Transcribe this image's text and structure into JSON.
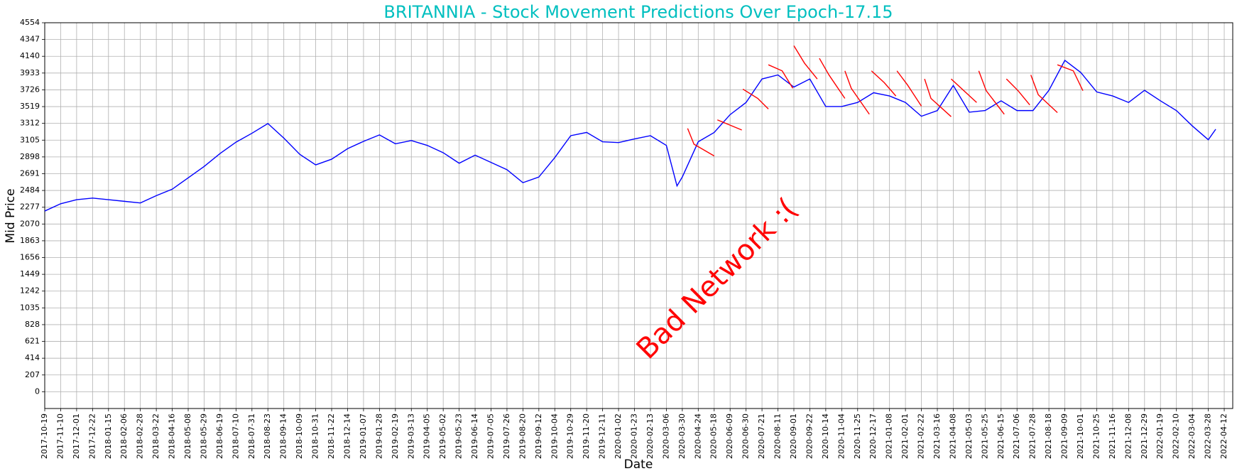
{
  "chart_data": {
    "type": "line",
    "title": "BRITANNIA - Stock Movement Predictions Over Epoch-17.15",
    "title_color": "#00bfbf",
    "x_label": "Date",
    "y_label": "Mid Price",
    "annotation": {
      "text": "Bad Network :(",
      "color": "red"
    },
    "grid": true,
    "xlim": [
      0,
      1118
    ],
    "ylim": [
      -207,
      4554
    ],
    "yticks": [
      0,
      207,
      414,
      621,
      828,
      1035,
      1242,
      1449,
      1656,
      1863,
      2070,
      2277,
      2484,
      2691,
      2898,
      3105,
      3312,
      3519,
      3726,
      3933,
      4140,
      4347,
      4554
    ],
    "xticks": [
      {
        "value": 0,
        "label": "2017-10-19"
      },
      {
        "value": 15,
        "label": "2017-11-10"
      },
      {
        "value": 30,
        "label": "2017-12-01"
      },
      {
        "value": 45,
        "label": "2017-12-22"
      },
      {
        "value": 60,
        "label": "2018-01-15"
      },
      {
        "value": 75,
        "label": "2018-02-06"
      },
      {
        "value": 90,
        "label": "2018-02-28"
      },
      {
        "value": 105,
        "label": "2018-03-22"
      },
      {
        "value": 120,
        "label": "2018-04-16"
      },
      {
        "value": 135,
        "label": "2018-05-08"
      },
      {
        "value": 150,
        "label": "2018-05-29"
      },
      {
        "value": 165,
        "label": "2018-06-19"
      },
      {
        "value": 180,
        "label": "2018-07-10"
      },
      {
        "value": 195,
        "label": "2018-07-31"
      },
      {
        "value": 210,
        "label": "2018-08-23"
      },
      {
        "value": 225,
        "label": "2018-09-14"
      },
      {
        "value": 240,
        "label": "2018-10-09"
      },
      {
        "value": 255,
        "label": "2018-10-31"
      },
      {
        "value": 270,
        "label": "2018-11-22"
      },
      {
        "value": 285,
        "label": "2018-12-14"
      },
      {
        "value": 300,
        "label": "2019-01-07"
      },
      {
        "value": 315,
        "label": "2019-01-28"
      },
      {
        "value": 330,
        "label": "2019-02-19"
      },
      {
        "value": 345,
        "label": "2019-03-13"
      },
      {
        "value": 360,
        "label": "2019-04-05"
      },
      {
        "value": 375,
        "label": "2019-05-02"
      },
      {
        "value": 390,
        "label": "2019-05-23"
      },
      {
        "value": 405,
        "label": "2019-06-14"
      },
      {
        "value": 420,
        "label": "2019-07-05"
      },
      {
        "value": 435,
        "label": "2019-07-26"
      },
      {
        "value": 450,
        "label": "2019-08-20"
      },
      {
        "value": 465,
        "label": "2019-09-12"
      },
      {
        "value": 480,
        "label": "2019-10-04"
      },
      {
        "value": 495,
        "label": "2019-10-29"
      },
      {
        "value": 510,
        "label": "2019-11-20"
      },
      {
        "value": 525,
        "label": "2019-12-11"
      },
      {
        "value": 540,
        "label": "2020-01-02"
      },
      {
        "value": 555,
        "label": "2020-01-23"
      },
      {
        "value": 570,
        "label": "2020-02-13"
      },
      {
        "value": 585,
        "label": "2020-03-06"
      },
      {
        "value": 600,
        "label": "2020-03-30"
      },
      {
        "value": 615,
        "label": "2020-04-24"
      },
      {
        "value": 630,
        "label": "2020-05-18"
      },
      {
        "value": 645,
        "label": "2020-06-09"
      },
      {
        "value": 660,
        "label": "2020-06-30"
      },
      {
        "value": 675,
        "label": "2020-07-21"
      },
      {
        "value": 690,
        "label": "2020-08-11"
      },
      {
        "value": 705,
        "label": "2020-09-01"
      },
      {
        "value": 720,
        "label": "2020-09-22"
      },
      {
        "value": 735,
        "label": "2020-10-14"
      },
      {
        "value": 750,
        "label": "2020-11-04"
      },
      {
        "value": 765,
        "label": "2020-11-25"
      },
      {
        "value": 780,
        "label": "2020-12-17"
      },
      {
        "value": 795,
        "label": "2021-01-08"
      },
      {
        "value": 810,
        "label": "2021-02-01"
      },
      {
        "value": 825,
        "label": "2021-02-22"
      },
      {
        "value": 840,
        "label": "2021-03-16"
      },
      {
        "value": 855,
        "label": "2021-04-08"
      },
      {
        "value": 870,
        "label": "2021-05-03"
      },
      {
        "value": 885,
        "label": "2021-05-25"
      },
      {
        "value": 900,
        "label": "2021-06-15"
      },
      {
        "value": 915,
        "label": "2021-07-06"
      },
      {
        "value": 930,
        "label": "2021-07-28"
      },
      {
        "value": 945,
        "label": "2021-08-18"
      },
      {
        "value": 960,
        "label": "2021-09-09"
      },
      {
        "value": 975,
        "label": "2021-10-01"
      },
      {
        "value": 990,
        "label": "2021-10-25"
      },
      {
        "value": 1005,
        "label": "2021-11-16"
      },
      {
        "value": 1020,
        "label": "2021-12-08"
      },
      {
        "value": 1035,
        "label": "2021-12-29"
      },
      {
        "value": 1050,
        "label": "2022-01-19"
      },
      {
        "value": 1065,
        "label": "2022-02-10"
      },
      {
        "value": 1080,
        "label": "2022-03-04"
      },
      {
        "value": 1095,
        "label": "2022-03-28"
      },
      {
        "value": 1110,
        "label": "2022-04-12"
      }
    ],
    "series": [
      {
        "color": "blue",
        "x": [
          0,
          15,
          30,
          45,
          60,
          75,
          90,
          105,
          120,
          135,
          150,
          165,
          180,
          195,
          210,
          225,
          240,
          255,
          270,
          285,
          300,
          315,
          330,
          345,
          360,
          375,
          390,
          405,
          420,
          435,
          450,
          465,
          480,
          495,
          510,
          525,
          540,
          555,
          570,
          585,
          595,
          600,
          615,
          630,
          645,
          660,
          675,
          690,
          705,
          720,
          735,
          750,
          765,
          780,
          795,
          810,
          825,
          840,
          855,
          870,
          885,
          900,
          915,
          930,
          945,
          960,
          975,
          990,
          1005,
          1020,
          1035,
          1050,
          1065,
          1080,
          1095,
          1102
        ],
        "values": [
          2230,
          2320,
          2370,
          2390,
          2370,
          2350,
          2330,
          2420,
          2500,
          2640,
          2780,
          2940,
          3080,
          3190,
          3310,
          3130,
          2930,
          2800,
          2870,
          3000,
          3090,
          3170,
          3060,
          3100,
          3040,
          2950,
          2820,
          2920,
          2830,
          2740,
          2580,
          2650,
          2890,
          3160,
          3200,
          3085,
          3075,
          3120,
          3160,
          3040,
          2540,
          2650,
          3085,
          3200,
          3420,
          3570,
          3860,
          3910,
          3760,
          3860,
          3520,
          3520,
          3570,
          3690,
          3650,
          3570,
          3400,
          3470,
          3780,
          3450,
          3470,
          3590,
          3470,
          3470,
          3720,
          4090,
          3940,
          3700,
          3650,
          3570,
          3720,
          3590,
          3470,
          3280,
          3110,
          3240
        ]
      },
      {
        "color": "red",
        "x": [
          605,
          611,
          630
        ],
        "values": [
          3250,
          3055,
          2910
        ]
      },
      {
        "color": "red",
        "x": [
          633,
          656
        ],
        "values": [
          3355,
          3230
        ]
      },
      {
        "color": "red",
        "x": [
          657,
          671,
          681
        ],
        "values": [
          3735,
          3620,
          3490
        ]
      },
      {
        "color": "red",
        "x": [
          681,
          694,
          704
        ],
        "values": [
          4035,
          3960,
          3745
        ]
      },
      {
        "color": "red",
        "x": [
          705,
          715,
          727
        ],
        "values": [
          4270,
          4055,
          3860
        ]
      },
      {
        "color": "red",
        "x": [
          729,
          738,
          753
        ],
        "values": [
          4115,
          3910,
          3620
        ]
      },
      {
        "color": "red",
        "x": [
          753,
          759,
          776
        ],
        "values": [
          3960,
          3745,
          3425
        ]
      },
      {
        "color": "red",
        "x": [
          778,
          790,
          801
        ],
        "values": [
          3960,
          3815,
          3650
        ]
      },
      {
        "color": "red",
        "x": [
          802,
          812,
          825
        ],
        "values": [
          3960,
          3785,
          3525
        ]
      },
      {
        "color": "red",
        "x": [
          828,
          834,
          853
        ],
        "values": [
          3860,
          3620,
          3395
        ]
      },
      {
        "color": "red",
        "x": [
          853,
          877
        ],
        "values": [
          3860,
          3570
        ]
      },
      {
        "color": "red",
        "x": [
          879,
          886,
          903
        ],
        "values": [
          3960,
          3715,
          3425
        ]
      },
      {
        "color": "red",
        "x": [
          905,
          916,
          927
        ],
        "values": [
          3860,
          3715,
          3540
        ]
      },
      {
        "color": "red",
        "x": [
          928,
          935,
          953
        ],
        "values": [
          3910,
          3665,
          3445
        ]
      },
      {
        "color": "red",
        "x": [
          953,
          968,
          977
        ],
        "values": [
          4035,
          3960,
          3715
        ]
      }
    ]
  }
}
